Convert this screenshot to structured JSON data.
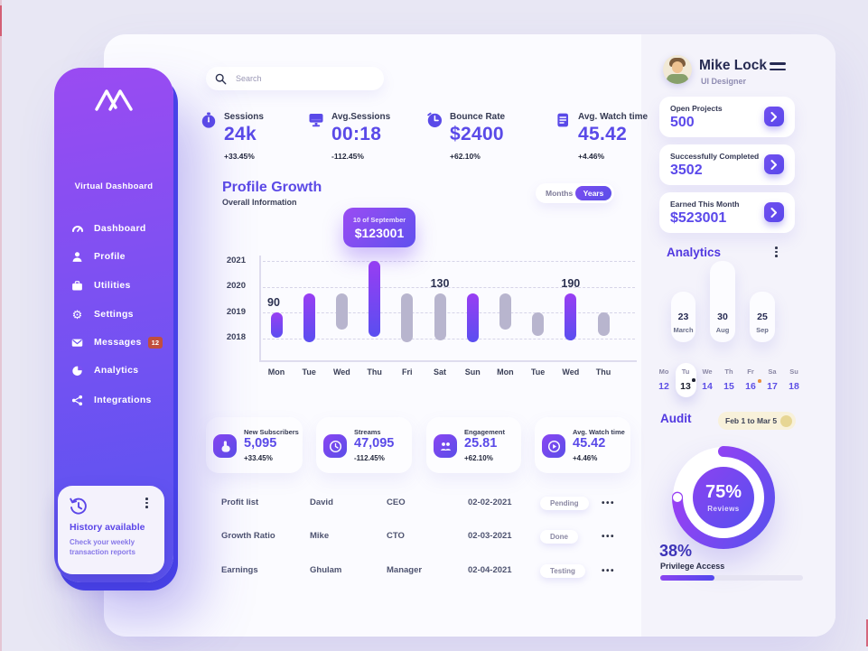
{
  "app": {
    "accent": "#5a4ae8",
    "sidebar_gradient_top": "#9a4bf2",
    "sidebar_gradient_bottom": "#5b54f0",
    "sidebar_edge": "#4742e8"
  },
  "sidebar": {
    "logo_title": "Virtual Dashboard",
    "items": [
      {
        "label": "Dashboard"
      },
      {
        "label": "Profile"
      },
      {
        "label": "Utilities"
      },
      {
        "label": "Settings"
      },
      {
        "label": "Messages",
        "badge": "12"
      },
      {
        "label": "Analytics"
      },
      {
        "label": "Integrations"
      }
    ],
    "history": {
      "title": "History available",
      "description": "Check your weekly transaction reports"
    }
  },
  "search": {
    "placeholder": "Search"
  },
  "stats": [
    {
      "label": "Sessions",
      "value": "24k",
      "delta": "+33.45%",
      "icon": "stopwatch-icon"
    },
    {
      "label": "Avg.Sessions",
      "value": "00:18",
      "delta": "-112.45%",
      "icon": "monitor-icon"
    },
    {
      "label": "Bounce Rate",
      "value": "$2400",
      "delta": "+62.10%",
      "icon": "clock-icon"
    },
    {
      "label": "Avg. Watch time",
      "value": "45.42",
      "delta": "+4.46%",
      "icon": "notes-icon"
    }
  ],
  "profile_growth": {
    "title": "Profile Growth",
    "subtitle": "Overall Information",
    "toggle": {
      "months": "Months",
      "years": "Years",
      "active": "Years"
    },
    "tooltip": {
      "date": "10 of September",
      "amount": "$123001"
    }
  },
  "chart_data": {
    "type": "bar",
    "title": "Profile Growth",
    "y_axis_labels": [
      "2021",
      "2020",
      "2019",
      "2018"
    ],
    "categories": [
      "Mon",
      "Tue",
      "Wed",
      "Thu",
      "Fri",
      "Sat",
      "Sun",
      "Mon",
      "Tue",
      "Wed",
      "Thu"
    ],
    "grid": "dashed-horizontal",
    "legend": "none",
    "bars": [
      {
        "day": "Mon",
        "from": 2018.0,
        "to": 2019.0,
        "color": "purple",
        "label": "90"
      },
      {
        "day": "Tue",
        "from": 2017.85,
        "to": 2019.75,
        "color": "purple"
      },
      {
        "day": "Wed",
        "from": 2018.35,
        "to": 2019.75,
        "color": "gray"
      },
      {
        "day": "Thu",
        "from": 2018.05,
        "to": 2021.0,
        "color": "purple"
      },
      {
        "day": "Fri",
        "from": 2017.85,
        "to": 2019.75,
        "color": "gray"
      },
      {
        "day": "Sat",
        "from": 2017.9,
        "to": 2019.75,
        "color": "gray",
        "label": "130"
      },
      {
        "day": "Sun",
        "from": 2017.85,
        "to": 2019.75,
        "color": "purple"
      },
      {
        "day": "Mon",
        "from": 2018.35,
        "to": 2019.75,
        "color": "gray"
      },
      {
        "day": "Tue",
        "from": 2018.1,
        "to": 2019.0,
        "color": "gray"
      },
      {
        "day": "Wed",
        "from": 2017.9,
        "to": 2019.75,
        "color": "purple",
        "label": "190"
      },
      {
        "day": "Thu",
        "from": 2018.1,
        "to": 2019.0,
        "color": "gray"
      }
    ],
    "tooltip": {
      "date": "10 of September",
      "amount": "$123001"
    }
  },
  "mini_stats": [
    {
      "label": "New Subscribers",
      "value": "5,095",
      "delta": "+33.45%",
      "icon": "hand-pointer-icon"
    },
    {
      "label": "Streams",
      "value": "47,095",
      "delta": "-112.45%",
      "icon": "clock-icon"
    },
    {
      "label": "Engagement",
      "value": "25.81",
      "delta": "+62.10%",
      "icon": "group-icon"
    },
    {
      "label": "Avg. Watch time",
      "value": "45.42",
      "delta": "+4.46%",
      "icon": "play-icon"
    }
  ],
  "table": {
    "rows": [
      {
        "item": "Profit list",
        "person": "David",
        "role": "CEO",
        "date": "02-02-2021",
        "status": "Pending"
      },
      {
        "item": "Growth Ratio",
        "person": "Mike",
        "role": "CTO",
        "date": "02-03-2021",
        "status": "Done"
      },
      {
        "item": "Earnings",
        "person": "Ghulam",
        "role": "Manager",
        "date": "02-04-2021",
        "status": "Testing"
      }
    ]
  },
  "profile": {
    "name": "Mike Lock",
    "role": "UI Designer"
  },
  "project_cards": [
    {
      "label": "Open Projects",
      "value": "500"
    },
    {
      "label": "Successfully Completed",
      "value": "3502"
    },
    {
      "label": "Earned This Month",
      "value": "$523001"
    }
  ],
  "analytics_panel": {
    "title": "Analytics",
    "bars": [
      {
        "value": "23",
        "month": "March"
      },
      {
        "value": "30",
        "month": "Aug"
      },
      {
        "value": "25",
        "month": "Sep"
      }
    ]
  },
  "calendar": {
    "days": [
      "Mo",
      "Tu",
      "We",
      "Th",
      "Fr",
      "Sa",
      "Su"
    ],
    "dates": [
      "12",
      "13",
      "14",
      "15",
      "16",
      "17",
      "18"
    ],
    "selected_date": "13",
    "marked_dates": [
      "13",
      "16"
    ]
  },
  "audit": {
    "title": "Audit",
    "date_range": "Feb 1 to Mar 5",
    "donut": {
      "value": 75,
      "percent": "75%",
      "label": "Reviews"
    },
    "privilege": {
      "value": 38,
      "percent": "38%",
      "label": "Privilege Access"
    }
  }
}
